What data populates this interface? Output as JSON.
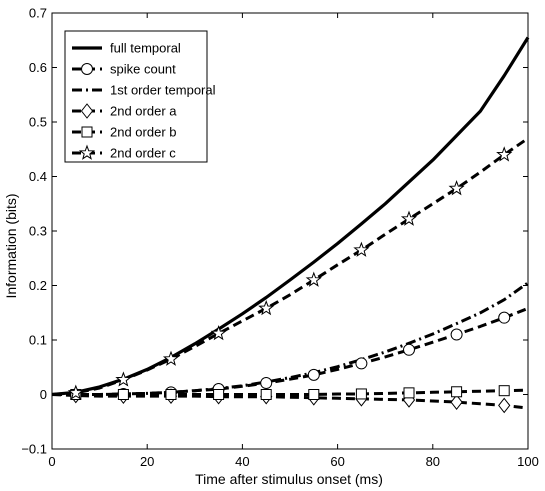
{
  "chart_data": {
    "type": "line",
    "title": "",
    "xlabel": "Time after stimulus onset (ms)",
    "ylabel": "Information (bits)",
    "xlim": [
      0,
      100
    ],
    "ylim": [
      -0.1,
      0.7
    ],
    "xticks": [
      0,
      20,
      40,
      60,
      80,
      100
    ],
    "xtick_labels": [
      "0",
      "20",
      "40",
      "60",
      "80",
      "100"
    ],
    "yticks": [
      -0.1,
      0,
      0.1,
      0.2,
      0.3,
      0.4,
      0.5,
      0.6,
      0.7
    ],
    "ytick_labels": [
      "−0.1",
      "0",
      "0.1",
      "0.2",
      "0.3",
      "0.4",
      "0.5",
      "0.6",
      "0.7"
    ],
    "grid": false,
    "legend_position": "top-left",
    "series": [
      {
        "name": "full temporal",
        "style": "solid",
        "marker": "none",
        "x": [
          0,
          5,
          10,
          15,
          20,
          25,
          30,
          35,
          40,
          45,
          50,
          55,
          60,
          65,
          70,
          75,
          80,
          85,
          90,
          95,
          100
        ],
        "y": [
          0,
          0.004,
          0.014,
          0.028,
          0.046,
          0.068,
          0.093,
          0.12,
          0.148,
          0.178,
          0.21,
          0.243,
          0.277,
          0.313,
          0.35,
          0.39,
          0.43,
          0.475,
          0.52,
          0.585,
          0.655
        ]
      },
      {
        "name": "spike count",
        "style": "dashed",
        "marker": "circle",
        "x": [
          0,
          5,
          10,
          15,
          20,
          25,
          30,
          35,
          40,
          45,
          50,
          55,
          60,
          65,
          70,
          75,
          80,
          85,
          90,
          95,
          100
        ],
        "y": [
          0,
          0,
          0,
          0.001,
          0.002,
          0.004,
          0.007,
          0.01,
          0.015,
          0.021,
          0.028,
          0.036,
          0.046,
          0.057,
          0.069,
          0.082,
          0.096,
          0.11,
          0.125,
          0.141,
          0.158
        ]
      },
      {
        "name": "1st order temporal",
        "style": "dashdot",
        "marker": "none",
        "x": [
          0,
          5,
          10,
          15,
          20,
          25,
          30,
          35,
          40,
          45,
          50,
          55,
          60,
          65,
          70,
          75,
          80,
          85,
          90,
          95,
          100
        ],
        "y": [
          0,
          0,
          0,
          0.001,
          0.002,
          0.004,
          0.007,
          0.011,
          0.016,
          0.023,
          0.031,
          0.04,
          0.051,
          0.064,
          0.078,
          0.094,
          0.111,
          0.13,
          0.15,
          0.174,
          0.205
        ]
      },
      {
        "name": "2nd order a",
        "style": "dashed",
        "marker": "diamond",
        "x": [
          0,
          5,
          10,
          15,
          20,
          25,
          30,
          35,
          40,
          45,
          50,
          55,
          60,
          65,
          70,
          75,
          80,
          85,
          90,
          95,
          100
        ],
        "y": [
          0,
          -0.002,
          -0.003,
          -0.003,
          -0.003,
          -0.003,
          -0.003,
          -0.004,
          -0.004,
          -0.004,
          -0.005,
          -0.006,
          -0.007,
          -0.008,
          -0.009,
          -0.01,
          -0.012,
          -0.014,
          -0.017,
          -0.02,
          -0.025
        ]
      },
      {
        "name": "2nd order b",
        "style": "dashed",
        "marker": "square",
        "x": [
          0,
          5,
          10,
          15,
          20,
          25,
          30,
          35,
          40,
          45,
          50,
          55,
          60,
          65,
          70,
          75,
          80,
          85,
          90,
          95,
          100
        ],
        "y": [
          0,
          0,
          0,
          0,
          0,
          0,
          0,
          0,
          0,
          0,
          0,
          0,
          0.001,
          0.001,
          0.002,
          0.003,
          0.004,
          0.005,
          0.006,
          0.007,
          0.008
        ]
      },
      {
        "name": "2nd order c",
        "style": "dashed",
        "marker": "star",
        "x": [
          0,
          5,
          10,
          15,
          20,
          25,
          30,
          35,
          40,
          45,
          50,
          55,
          60,
          65,
          70,
          75,
          80,
          85,
          90,
          95,
          100
        ],
        "y": [
          0,
          0.003,
          0.012,
          0.027,
          0.045,
          0.065,
          0.088,
          0.112,
          0.135,
          0.158,
          0.183,
          0.21,
          0.238,
          0.265,
          0.294,
          0.322,
          0.35,
          0.378,
          0.408,
          0.44,
          0.47
        ]
      }
    ],
    "marker_x": [
      5,
      15,
      25,
      35,
      45,
      55,
      65,
      75,
      85,
      95
    ]
  }
}
